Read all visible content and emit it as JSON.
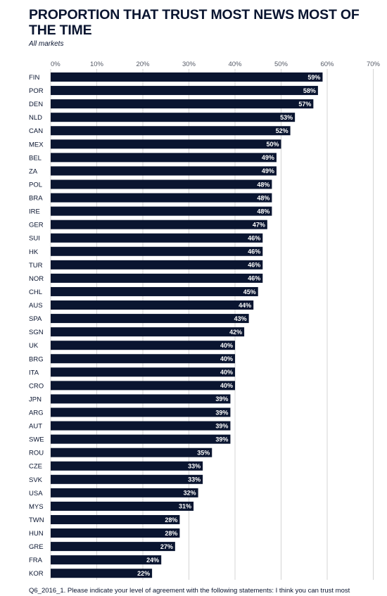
{
  "title": "PROPORTION THAT TRUST MOST NEWS MOST OF THE TIME",
  "subtitle": "All markets",
  "footnote": "Q6_2016_1. Please indicate your level of agreement with the following statements: I think you can trust most",
  "colors": {
    "bar": "#0a1530",
    "grid": "#d4d4d4",
    "label": "#ffffff"
  },
  "chart_data": {
    "type": "bar",
    "orientation": "horizontal",
    "categories": [
      "FIN",
      "POR",
      "DEN",
      "NLD",
      "CAN",
      "MEX",
      "BEL",
      "ZA",
      "POL",
      "BRA",
      "IRE",
      "GER",
      "SUI",
      "HK",
      "TUR",
      "NOR",
      "CHL",
      "AUS",
      "SPA",
      "SGN",
      "UK",
      "BRG",
      "ITA",
      "CRO",
      "JPN",
      "ARG",
      "AUT",
      "SWE",
      "ROU",
      "CZE",
      "SVK",
      "USA",
      "MYS",
      "TWN",
      "HUN",
      "GRE",
      "FRA",
      "KOR"
    ],
    "values": [
      59,
      58,
      57,
      53,
      52,
      50,
      49,
      49,
      48,
      48,
      48,
      47,
      46,
      46,
      46,
      46,
      45,
      44,
      43,
      42,
      40,
      40,
      40,
      40,
      39,
      39,
      39,
      39,
      35,
      33,
      33,
      32,
      31,
      28,
      28,
      27,
      24,
      22
    ],
    "data_labels": [
      "59%",
      "58%",
      "57%",
      "53%",
      "52%",
      "50%",
      "49%",
      "49%",
      "48%",
      "48%",
      "48%",
      "47%",
      "46%",
      "46%",
      "46%",
      "46%",
      "45%",
      "44%",
      "43%",
      "42%",
      "40%",
      "40%",
      "40%",
      "40%",
      "39%",
      "39%",
      "39%",
      "39%",
      "35%",
      "33%",
      "33%",
      "32%",
      "31%",
      "28%",
      "28%",
      "27%",
      "24%",
      "22%"
    ],
    "xticks": [
      0,
      10,
      20,
      30,
      40,
      50,
      60,
      70
    ],
    "xtick_labels": [
      "0%",
      "10%",
      "20%",
      "30%",
      "40%",
      "50%",
      "60%",
      "70%"
    ],
    "xlim": [
      0,
      70
    ],
    "xaxis_position": "top",
    "grid": true,
    "title": "PROPORTION THAT TRUST MOST NEWS MOST OF THE TIME",
    "subtitle": "All markets"
  }
}
